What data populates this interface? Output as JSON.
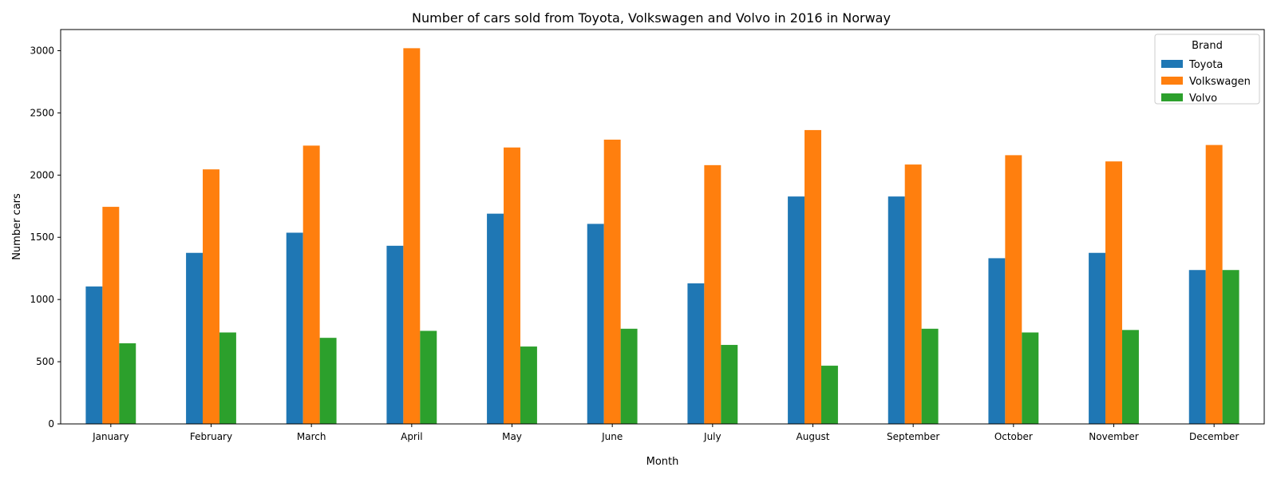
{
  "chart_data": {
    "type": "bar",
    "title": "Number of cars sold from Toyota, Volkswagen and Volvo in 2016 in Norway",
    "xlabel": "Month",
    "ylabel": "Number cars",
    "categories": [
      "January",
      "February",
      "March",
      "April",
      "May",
      "June",
      "July",
      "August",
      "September",
      "October",
      "November",
      "December"
    ],
    "ylim": [
      0,
      3170
    ],
    "yticks": [
      0,
      500,
      1000,
      1500,
      2000,
      2500,
      3000
    ],
    "grid": false,
    "legend": {
      "title": "Brand",
      "placement": "top-right"
    },
    "series": [
      {
        "name": "Toyota",
        "color": "#1f77b4",
        "values": [
          1105,
          1375,
          1537,
          1432,
          1690,
          1608,
          1130,
          1828,
          1828,
          1332,
          1375,
          1237
        ]
      },
      {
        "name": "Volkswagen",
        "color": "#ff7f0e",
        "values": [
          1745,
          2046,
          2237,
          3020,
          2222,
          2285,
          2080,
          2362,
          2085,
          2160,
          2110,
          2242
        ]
      },
      {
        "name": "Volvo",
        "color": "#2ca02c",
        "values": [
          648,
          735,
          692,
          748,
          622,
          765,
          635,
          468,
          765,
          735,
          755,
          1237
        ]
      }
    ]
  }
}
